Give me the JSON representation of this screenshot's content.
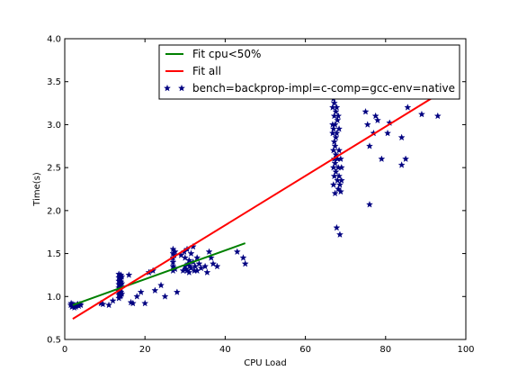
{
  "chart_data": {
    "type": "scatter",
    "xlabel": "CPU Load",
    "ylabel": "Time(s)",
    "xlim": [
      0,
      100
    ],
    "ylim": [
      0.5,
      4.0
    ],
    "xticks": [
      "0",
      "20",
      "40",
      "60",
      "80",
      "100"
    ],
    "yticks": [
      "0.5",
      "1.0",
      "1.5",
      "2.0",
      "2.5",
      "3.0",
      "3.5",
      "4.0"
    ],
    "grid": false,
    "legend_position": "top-right",
    "lines": [
      {
        "name": "Fit cpu<50%",
        "color": "#008000",
        "x": [
          2,
          45
        ],
        "y": [
          0.9,
          1.62
        ]
      },
      {
        "name": "Fit all",
        "color": "#ff0000",
        "x": [
          2,
          93
        ],
        "y": [
          0.74,
          3.35
        ]
      }
    ],
    "scatter": {
      "name": "bench=backprop-impl=c-comp=gcc-env=native",
      "color": "#000080",
      "marker": "star",
      "points": [
        [
          1.5,
          0.9
        ],
        [
          1.8,
          0.88
        ],
        [
          2,
          0.91
        ],
        [
          2.2,
          0.89
        ],
        [
          2.5,
          0.9
        ],
        [
          2.8,
          0.88
        ],
        [
          3,
          0.9
        ],
        [
          3.2,
          0.91
        ],
        [
          3.5,
          0.89
        ],
        [
          4,
          0.9
        ],
        [
          1.6,
          0.92
        ],
        [
          2.4,
          0.87
        ],
        [
          3.8,
          0.91
        ],
        [
          9,
          0.92
        ],
        [
          9.5,
          0.91
        ],
        [
          11,
          0.9
        ],
        [
          12,
          0.95
        ],
        [
          13.5,
          0.98
        ],
        [
          13.5,
          1.02
        ],
        [
          13.5,
          1.06
        ],
        [
          13.5,
          1.1
        ],
        [
          13.5,
          1.14
        ],
        [
          13.5,
          1.18
        ],
        [
          13.5,
          1.22
        ],
        [
          13.5,
          1.26
        ],
        [
          13.8,
          1.0
        ],
        [
          13.8,
          1.04
        ],
        [
          13.8,
          1.08
        ],
        [
          13.8,
          1.12
        ],
        [
          13.8,
          1.16
        ],
        [
          13.8,
          1.2
        ],
        [
          13.8,
          1.24
        ],
        [
          14,
          1.01
        ],
        [
          14,
          1.05
        ],
        [
          14,
          1.09
        ],
        [
          14,
          1.13
        ],
        [
          14,
          1.17
        ],
        [
          14,
          1.21
        ],
        [
          14,
          1.25
        ],
        [
          14.2,
          1.03
        ],
        [
          14.2,
          1.15
        ],
        [
          14.2,
          1.23
        ],
        [
          16,
          1.25
        ],
        [
          16.5,
          0.93
        ],
        [
          17,
          0.92
        ],
        [
          18,
          1.0
        ],
        [
          19,
          1.05
        ],
        [
          20,
          0.92
        ],
        [
          21,
          1.28
        ],
        [
          22,
          1.3
        ],
        [
          22.5,
          1.07
        ],
        [
          24,
          1.13
        ],
        [
          25,
          1.0
        ],
        [
          27,
          1.3
        ],
        [
          27,
          1.35
        ],
        [
          27,
          1.4
        ],
        [
          27,
          1.45
        ],
        [
          27,
          1.5
        ],
        [
          27,
          1.55
        ],
        [
          27.3,
          1.33
        ],
        [
          27.3,
          1.48
        ],
        [
          27.5,
          1.32
        ],
        [
          27.5,
          1.52
        ],
        [
          28,
          1.05
        ],
        [
          29,
          1.48
        ],
        [
          29.5,
          1.3
        ],
        [
          29.8,
          1.52
        ],
        [
          30,
          1.35
        ],
        [
          30,
          1.45
        ],
        [
          30.2,
          1.32
        ],
        [
          30.5,
          1.55
        ],
        [
          30.5,
          1.3
        ],
        [
          30.8,
          1.38
        ],
        [
          31,
          1.42
        ],
        [
          31,
          1.28
        ],
        [
          31.2,
          1.35
        ],
        [
          31.5,
          1.5
        ],
        [
          31.5,
          1.33
        ],
        [
          32,
          1.4
        ],
        [
          32,
          1.58
        ],
        [
          32.3,
          1.3
        ],
        [
          32.5,
          1.35
        ],
        [
          33,
          1.3
        ],
        [
          33,
          1.45
        ],
        [
          33.5,
          1.38
        ],
        [
          34,
          1.33
        ],
        [
          35,
          1.35
        ],
        [
          35.5,
          1.28
        ],
        [
          36,
          1.52
        ],
        [
          36.5,
          1.45
        ],
        [
          37,
          1.38
        ],
        [
          38,
          1.35
        ],
        [
          43,
          1.52
        ],
        [
          44.5,
          1.45
        ],
        [
          45,
          1.38
        ],
        [
          66.8,
          3.0
        ],
        [
          66.8,
          3.2
        ],
        [
          66.8,
          2.9
        ],
        [
          67,
          3.6
        ],
        [
          67,
          3.3
        ],
        [
          67,
          2.95
        ],
        [
          67,
          2.7
        ],
        [
          67,
          2.5
        ],
        [
          67,
          2.3
        ],
        [
          67.2,
          3.55
        ],
        [
          67.2,
          3.25
        ],
        [
          67.2,
          3.1
        ],
        [
          67.2,
          2.8
        ],
        [
          67.2,
          2.6
        ],
        [
          67.2,
          2.4
        ],
        [
          67.4,
          3.45
        ],
        [
          67.4,
          3.0
        ],
        [
          67.4,
          2.75
        ],
        [
          67.4,
          2.55
        ],
        [
          67.4,
          2.2
        ],
        [
          67.6,
          3.4
        ],
        [
          67.6,
          3.15
        ],
        [
          67.6,
          2.85
        ],
        [
          67.6,
          2.65
        ],
        [
          67.6,
          2.45
        ],
        [
          67.8,
          1.8
        ],
        [
          67.8,
          3.2
        ],
        [
          67.8,
          2.9
        ],
        [
          68,
          3.35
        ],
        [
          68,
          3.05
        ],
        [
          68,
          2.6
        ],
        [
          68,
          2.35
        ],
        [
          68.2,
          3.1
        ],
        [
          68.2,
          2.5
        ],
        [
          68.2,
          2.25
        ],
        [
          68.4,
          2.95
        ],
        [
          68.4,
          2.7
        ],
        [
          68.4,
          2.4
        ],
        [
          68.6,
          2.3
        ],
        [
          68.6,
          1.72
        ],
        [
          68.8,
          2.6
        ],
        [
          68.8,
          2.22
        ],
        [
          69,
          2.5
        ],
        [
          69,
          2.35
        ],
        [
          75,
          3.15
        ],
        [
          75.5,
          3.0
        ],
        [
          76,
          2.75
        ],
        [
          76,
          2.07
        ],
        [
          77,
          2.9
        ],
        [
          77.5,
          3.1
        ],
        [
          78,
          3.05
        ],
        [
          79,
          2.6
        ],
        [
          80,
          3.6
        ],
        [
          80.5,
          2.9
        ],
        [
          81,
          3.02
        ],
        [
          84,
          2.85
        ],
        [
          84,
          2.53
        ],
        [
          85,
          2.6
        ],
        [
          85.5,
          3.2
        ],
        [
          89,
          3.12
        ],
        [
          93,
          3.1
        ]
      ]
    }
  }
}
